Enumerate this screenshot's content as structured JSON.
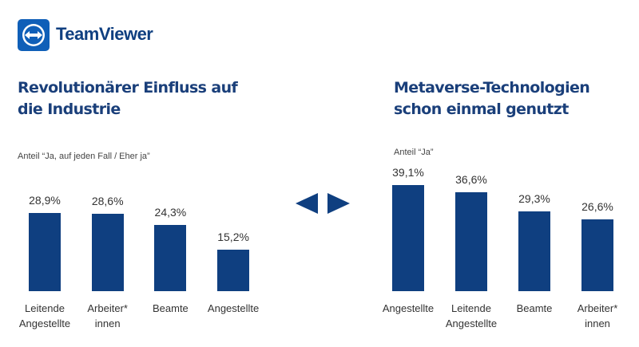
{
  "logo": {
    "text": "TeamViewer"
  },
  "chart_data": [
    {
      "type": "bar",
      "title": "Revolutionärer Einfluss auf die Industrie",
      "subtitle": "Anteil “Ja, auf jeden Fall / Eher ja”",
      "categories": [
        "Leitende\nAngestellte",
        "Arbeiter*\ninnen",
        "Beamte",
        "Angestellte"
      ],
      "values": [
        28.9,
        28.6,
        24.3,
        15.2
      ],
      "value_labels": [
        "28,9%",
        "28,6%",
        "24,3%",
        "15,2%"
      ],
      "color": "#0f3f80"
    },
    {
      "type": "bar",
      "title": "Metaverse-Technologien schon einmal genutzt",
      "subtitle": "Anteil “Ja”",
      "categories": [
        "Angestellte",
        "Leitende\nAngestellte",
        "Beamte",
        "Arbeiter*\ninnen"
      ],
      "values": [
        39.1,
        36.6,
        29.3,
        26.6
      ],
      "value_labels": [
        "39,1%",
        "36,6%",
        "29,3%",
        "26,6%"
      ],
      "color": "#0f3f80"
    }
  ]
}
